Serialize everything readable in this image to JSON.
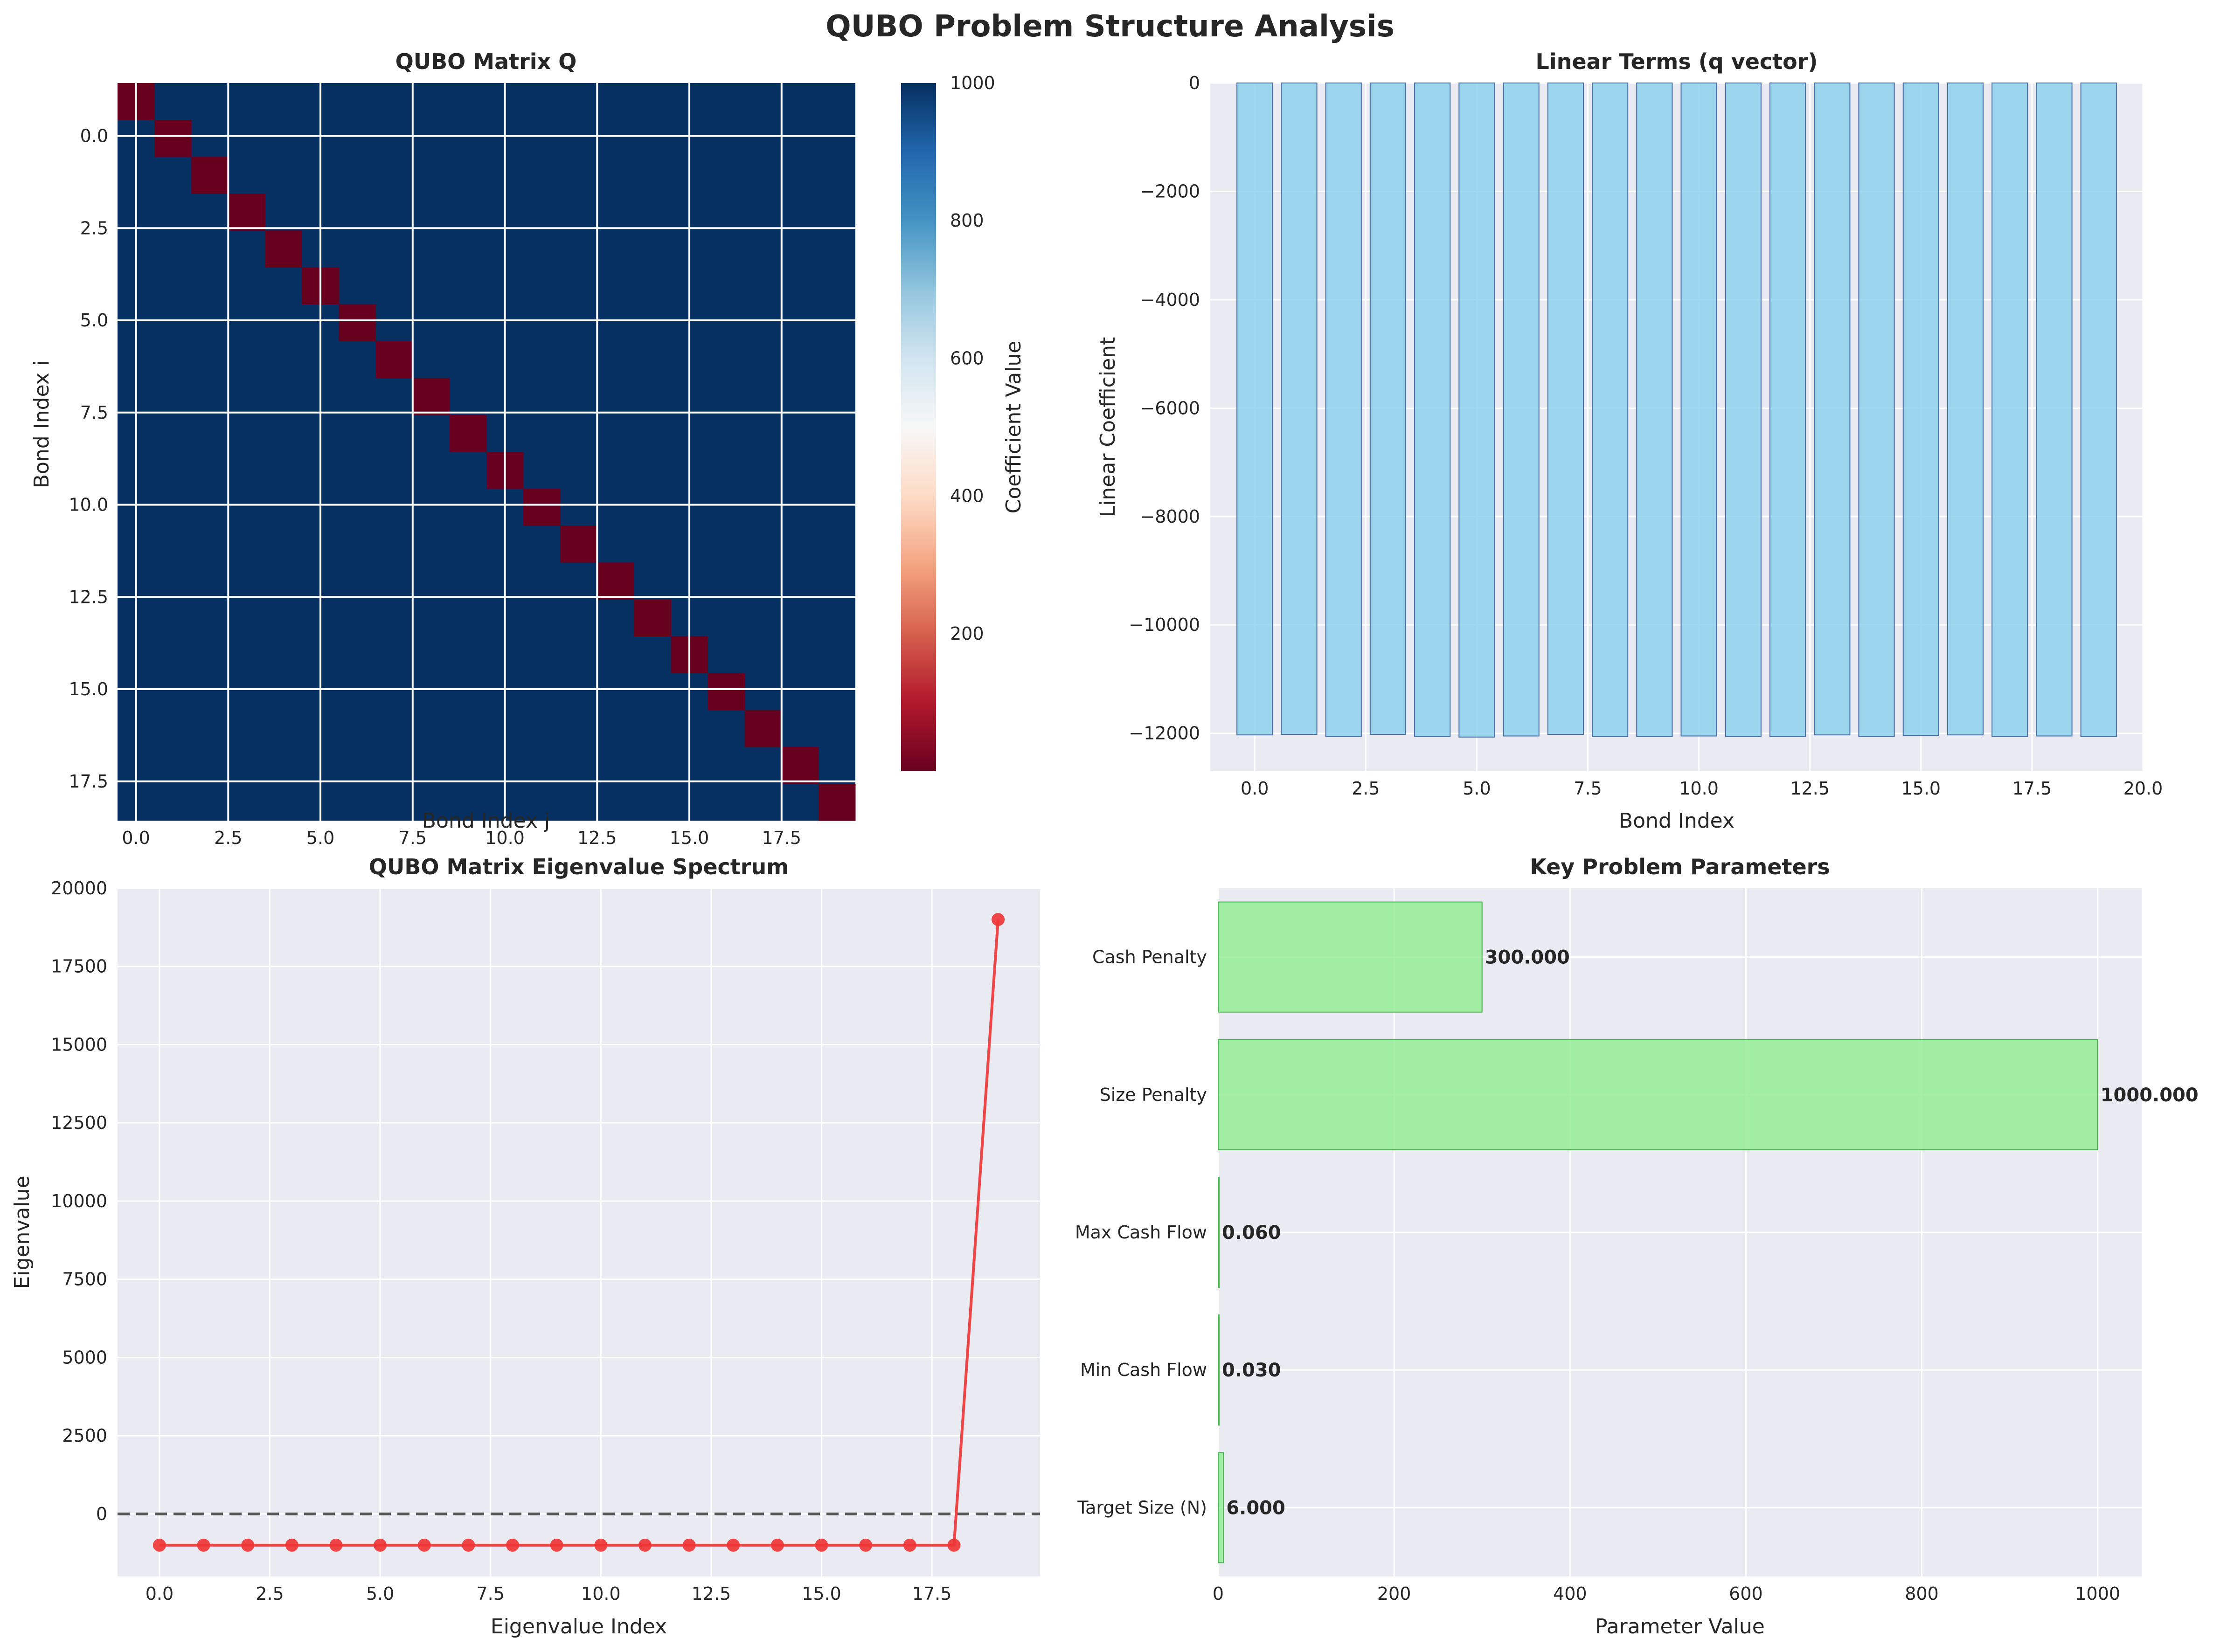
{
  "title": "QUBO Problem Structure Analysis",
  "colors": {
    "panel_bg": "#eaeaf2",
    "grid": "#ffffff",
    "heat_high": "#053061",
    "heat_low": "#67001f",
    "bar_blue": "#87ceeb",
    "bar_blue_edge": "#4a6fa5",
    "line_red": "#ee3333",
    "bar_green": "#90ee90",
    "bar_green_edge": "#4caf50",
    "dashed": "#555555"
  },
  "chart_data": [
    {
      "type": "heatmap",
      "title": "QUBO Matrix Q",
      "xlabel": "Bond Index j",
      "ylabel": "Bond Index i",
      "size": 20,
      "diagonal_value": 0,
      "offdiagonal_value": 1000,
      "xticks": [
        "0.0",
        "2.5",
        "5.0",
        "7.5",
        "10.0",
        "12.5",
        "15.0",
        "17.5"
      ],
      "yticks": [
        "0.0",
        "2.5",
        "5.0",
        "7.5",
        "10.0",
        "12.5",
        "15.0",
        "17.5"
      ],
      "colorbar": {
        "label": "Coefficient Value",
        "ticks": [
          "200",
          "400",
          "600",
          "800",
          "1000"
        ],
        "range": [
          0,
          1000
        ],
        "colormap": "RdBu"
      }
    },
    {
      "type": "bar",
      "title": "Linear Terms (q vector)",
      "xlabel": "Bond Index",
      "ylabel": "Linear Coefficient",
      "x": [
        0,
        1,
        2,
        3,
        4,
        5,
        6,
        7,
        8,
        9,
        10,
        11,
        12,
        13,
        14,
        15,
        16,
        17,
        18,
        19
      ],
      "values": [
        -12030,
        -12020,
        -12060,
        -12020,
        -12060,
        -12070,
        -12050,
        -12020,
        -12060,
        -12060,
        -12050,
        -12060,
        -12060,
        -12030,
        -12060,
        -12040,
        -12030,
        -12060,
        -12050,
        -12060
      ],
      "xlim": [
        -1,
        20
      ],
      "ylim": [
        -12700,
        0
      ],
      "xticks": [
        "0.0",
        "2.5",
        "5.0",
        "7.5",
        "10.0",
        "12.5",
        "15.0",
        "17.5",
        "20.0"
      ],
      "yticks": [
        "0",
        "−2000",
        "−4000",
        "−6000",
        "−8000",
        "−10000",
        "−12000"
      ]
    },
    {
      "type": "line",
      "title": "QUBO Matrix Eigenvalue Spectrum",
      "xlabel": "Eigenvalue Index",
      "ylabel": "Eigenvalue",
      "x": [
        0,
        1,
        2,
        3,
        4,
        5,
        6,
        7,
        8,
        9,
        10,
        11,
        12,
        13,
        14,
        15,
        16,
        17,
        18,
        19
      ],
      "values": [
        -1000,
        -1000,
        -1000,
        -1000,
        -1000,
        -1000,
        -1000,
        -1000,
        -1000,
        -1000,
        -1000,
        -1000,
        -1000,
        -1000,
        -1000,
        -1000,
        -1000,
        -1000,
        -1000,
        19000
      ],
      "xlim": [
        -0.95,
        19.95
      ],
      "ylim": [
        -2000,
        20000
      ],
      "reference_line": 0,
      "xticks": [
        "0.0",
        "2.5",
        "5.0",
        "7.5",
        "10.0",
        "12.5",
        "15.0",
        "17.5"
      ],
      "yticks": [
        "0",
        "2500",
        "5000",
        "7500",
        "10000",
        "12500",
        "15000",
        "17500",
        "20000"
      ]
    },
    {
      "type": "bar",
      "orientation": "horizontal",
      "title": "Key Problem Parameters",
      "xlabel": "Parameter Value",
      "categories": [
        "Cash Penalty",
        "Size Penalty",
        "Max Cash Flow",
        "Min Cash Flow",
        "Target Size (N)"
      ],
      "values": [
        300,
        1000,
        0.06,
        0.03,
        6
      ],
      "value_labels": [
        "300.000",
        "1000.000",
        "0.060",
        "0.030",
        "6.000"
      ],
      "xlim": [
        0,
        1050
      ],
      "xticks": [
        "0",
        "200",
        "400",
        "600",
        "800",
        "1000"
      ]
    }
  ]
}
